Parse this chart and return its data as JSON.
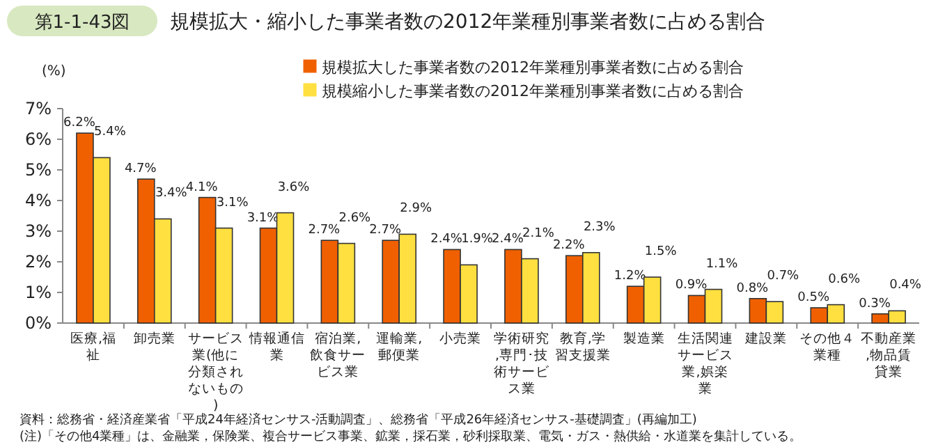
{
  "chart_data": {
    "type": "bar",
    "title": "規模拡大・縮小した事業者数の2012年業種別事業者数に占める割合",
    "ylabel": "(%)",
    "annotations": [
      "第1-1-43図",
      "資料：総務省・経済産業省「平成24年経済センサス-活動調査」、総務省「平成26年経済センサス-基礎調査」(再編加工)",
      "(注)「その他4業種」は、金融業，保険業、複合サービス事業、鉱業，採石業，砂利採取業、電気・ガス・熱供給・水道業を集計している。"
    ],
    "categories": [
      "医療,福祉",
      "卸売業",
      "サービス業(他に分類されないもの)",
      "情報通信業",
      "宿泊業,飲食サービス業",
      "運輸業,郵便業",
      "小売業",
      "学術研究,専門･技術サービス業",
      "教育,学習支援業",
      "製造業",
      "生活関連サービス業,娯楽業",
      "建設業",
      "その他４業種",
      "不動産業,物品賃貸業"
    ],
    "series": [
      {
        "name": "規模拡大した事業者数の2012年業種別事業者数に占める割合",
        "color": "#f06000",
        "values": [
          6.2,
          4.7,
          4.1,
          3.1,
          2.7,
          2.7,
          2.4,
          2.4,
          2.2,
          1.2,
          0.9,
          0.8,
          0.5,
          0.3
        ],
        "value_labels": [
          "6.2%",
          "4.7%",
          "4.1%",
          "3.1%",
          "2.7%",
          "2.7%",
          "2.4%",
          "2.4%",
          "2.2%",
          "1.2%",
          "0.9%",
          "0.8%",
          "0.5%",
          "0.3%"
        ]
      },
      {
        "name": "規模縮小した事業者数の2012年業種別事業者数に占める割合",
        "color": "#ffe040",
        "values": [
          5.4,
          3.4,
          3.1,
          3.6,
          2.6,
          2.9,
          1.9,
          2.1,
          2.3,
          1.5,
          1.1,
          0.7,
          0.6,
          0.4
        ],
        "value_labels": [
          "5.4%",
          "3.4%",
          "3.1%",
          "3.6%",
          "2.6%",
          "2.9%",
          "1.9%",
          "2.1%",
          "2.3%",
          "1.5%",
          "1.1%",
          "0.7%",
          "0.6%",
          "0.4%"
        ]
      }
    ],
    "ylim": [
      0,
      7
    ],
    "yticks": [
      {
        "value": 0,
        "label": "0%"
      },
      {
        "value": 1,
        "label": "1%"
      },
      {
        "value": 2,
        "label": "2%"
      },
      {
        "value": 3,
        "label": "3%"
      },
      {
        "value": 4,
        "label": "4%"
      },
      {
        "value": 5,
        "label": "5%"
      },
      {
        "value": 6,
        "label": "6%"
      },
      {
        "value": 7,
        "label": "7%"
      }
    ],
    "legend": "top right"
  }
}
